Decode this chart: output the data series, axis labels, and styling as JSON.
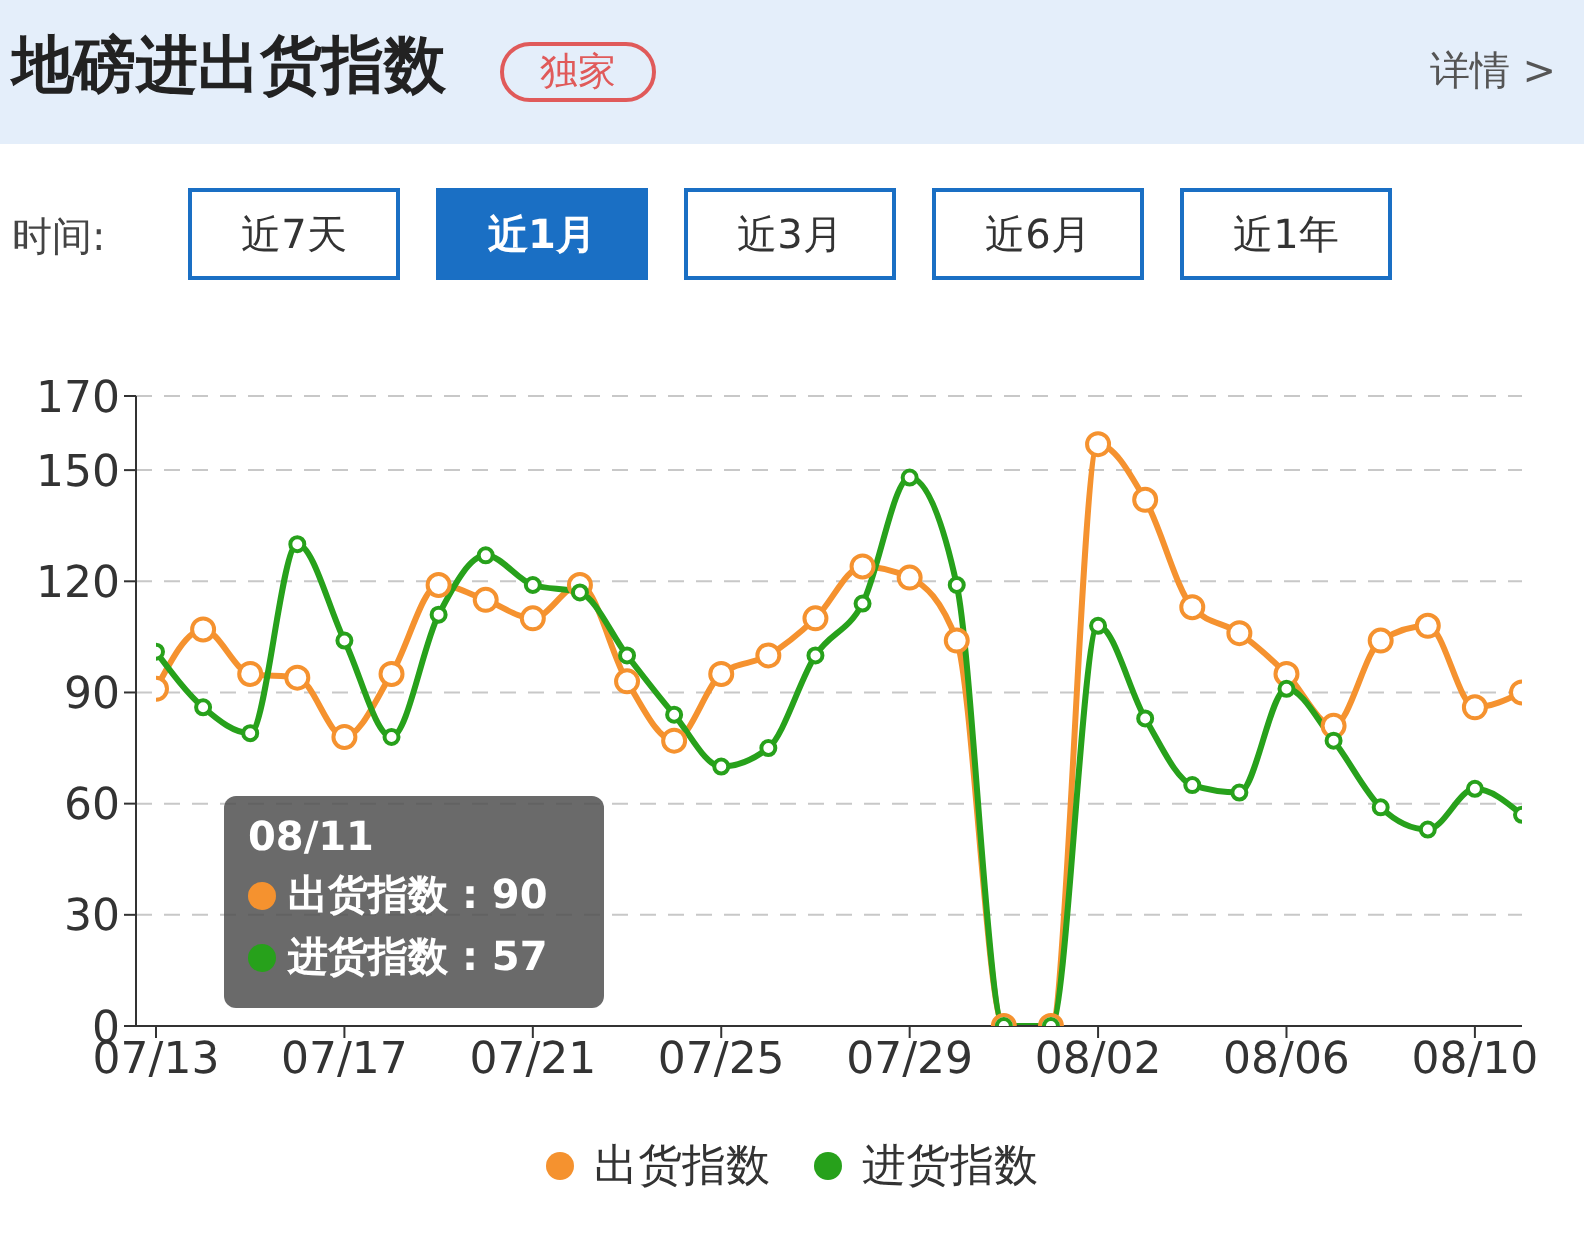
{
  "chart_data": {
    "type": "line",
    "title": "地磅进出货指数",
    "categories": [
      "07/13",
      null,
      null,
      null,
      "07/17",
      null,
      null,
      null,
      "07/21",
      null,
      null,
      null,
      "07/25",
      null,
      null,
      null,
      "07/29",
      null,
      null,
      null,
      "08/02",
      null,
      null,
      null,
      "08/06",
      null,
      null,
      null,
      "08/10",
      null
    ],
    "series": [
      {
        "name": "出货指数",
        "color": "#f5922f",
        "values": [
          91,
          107,
          95,
          94,
          78,
          95,
          119,
          115,
          110,
          119,
          93,
          77,
          95,
          100,
          110,
          124,
          121,
          104,
          0,
          0,
          157,
          142,
          113,
          106,
          95,
          81,
          104,
          108,
          86,
          90
        ]
      },
      {
        "name": "进货指数",
        "color": "#27a11b",
        "values": [
          101,
          86,
          79,
          130,
          104,
          78,
          111,
          127,
          119,
          117,
          100,
          84,
          70,
          75,
          100,
          114,
          148,
          119,
          0,
          0,
          108,
          83,
          65,
          63,
          91,
          77,
          59,
          53,
          64,
          57
        ]
      }
    ],
    "ylim": [
      0,
      170
    ],
    "yticks": [
      0,
      30,
      60,
      90,
      120,
      150,
      170
    ],
    "grid": "y",
    "legend": "bottom",
    "marker": "circle",
    "line_style": "solid",
    "annotations": [
      "独家",
      "详情 >",
      "时间:",
      "近7天",
      "近1月",
      "近3月",
      "近6月",
      "近1年",
      "08/11",
      "出货指数 : 90",
      "进货指数 : 57"
    ]
  }
}
